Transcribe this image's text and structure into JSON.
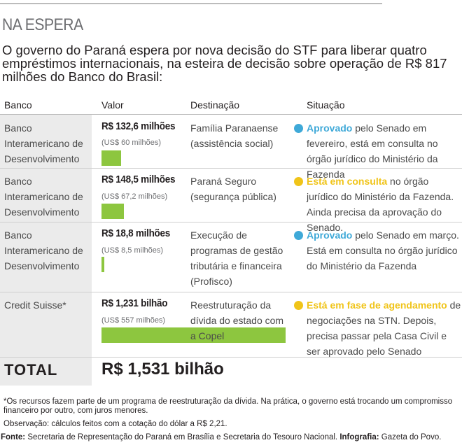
{
  "kicker": "NA ESPERA",
  "headline": "O governo do Paraná espera por nova decisão do STF para liberar quatro empréstimos internacionais, na esteira de decisão sobre operação de R$ 817 milhões do Banco do Brasil:",
  "columns": {
    "banco": "Banco",
    "valor": "Valor",
    "destinacao": "Destinação",
    "situacao": "Situação"
  },
  "colors": {
    "bar": "#8dc63f",
    "approved": "#3fa9d8",
    "pending": "#f0c419",
    "shade": "#ebebeb"
  },
  "rows": [
    {
      "banco": "Banco Interamericano de Desenvolvimento",
      "valor": "R$ 132,6 milhões",
      "valor_usd": "(US$ 60 milhões)",
      "bar_share": 0.1077,
      "destinacao": "Família Paranaense (assistência social)",
      "status": "Aprovado",
      "status_type": "approved",
      "situacao": " pelo Senado em fevereiro, está em consulta no órgão jurídico do Ministério da Fazenda"
    },
    {
      "banco": "Banco Interamericano de Desenvolvimento",
      "valor": "R$ 148,5 milhões",
      "valor_usd": "(US$ 67,2 milhões)",
      "bar_share": 0.1206,
      "destinacao": "Paraná Seguro (segurança pública)",
      "status": "Está em consulta",
      "status_type": "pending",
      "situacao": " no órgão jurídico do Ministério da Fazenda. Ainda precisa da aprovação do Senado."
    },
    {
      "banco": "Banco Interamericano de Desenvolvimento",
      "valor": "R$ 18,8 milhões",
      "valor_usd": "(US$ 8,5 milhões)",
      "bar_share": 0.0153,
      "destinacao": "Execução de programas de gestão tributária e financeira (Profisco)",
      "status": "Aprovado",
      "status_type": "approved",
      "situacao": " pelo Senado em março. Está em consulta no órgão jurídico do Ministério da Fazenda"
    },
    {
      "banco": "Credit Suisse*",
      "valor": "R$ 1,231 bilhão",
      "valor_usd": "(US$ 557 milhões)",
      "bar_share": 1.0,
      "destinacao": "Reestruturação da dívida do estado com a Copel",
      "status": "Está em fase de agendamento",
      "status_type": "pending",
      "situacao": " de negociações na STN. Depois, precisa passar pela Casa Civil e ser aprovado pelo Senado"
    }
  ],
  "total": {
    "label": "TOTAL",
    "value": "R$ 1,531 bilhão"
  },
  "footnote": "*Os recursos fazem parte de um programa de reestruturação da dívida. Na prática, o governo está trocando um compromisso financeiro por outro, com juros menores.",
  "observacao": "Observação: cálculos feitos com a cotação do dólar a R$ 2,21.",
  "source": {
    "fonte_label": "Fonte:",
    "fonte_text": " Secretaria de Representação do Paraná em Brasília e Secretaria do Tesouro Nacional. ",
    "infografia_label": "Infografia:",
    "infografia_text": " Gazeta do Povo."
  }
}
